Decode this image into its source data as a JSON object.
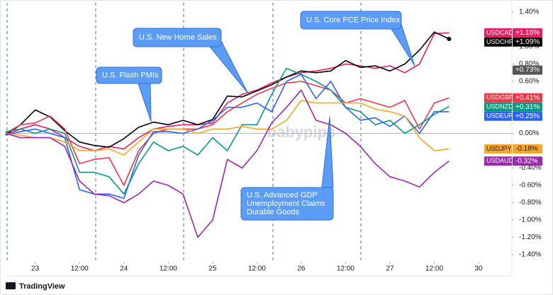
{
  "chart_data": {
    "type": "line",
    "x": [
      -8,
      -4,
      0,
      4,
      8,
      12,
      16,
      20,
      24,
      28,
      32,
      36,
      40,
      44,
      48,
      52,
      56,
      60,
      64,
      68,
      72,
      76,
      80,
      84,
      88,
      92,
      96,
      100,
      104,
      108,
      112
    ],
    "xlim": [
      -8,
      129
    ],
    "xticks": [
      {
        "value": 0,
        "label": "23"
      },
      {
        "value": 12,
        "label": "12:00"
      },
      {
        "value": 24,
        "label": "24"
      },
      {
        "value": 36,
        "label": "12:00"
      },
      {
        "value": 48,
        "label": "25"
      },
      {
        "value": 60,
        "label": "12:00"
      },
      {
        "value": 72,
        "label": "26"
      },
      {
        "value": 84,
        "label": "12:00"
      },
      {
        "value": 96,
        "label": "27"
      },
      {
        "value": 108,
        "label": "12:00"
      },
      {
        "value": 120,
        "label": "30"
      }
    ],
    "ylim": [
      -1.4,
      1.4
    ],
    "yticks": [
      {
        "value": 1.4,
        "label": "1.40%"
      },
      {
        "value": 1.0,
        "label": "1.00%"
      },
      {
        "value": 0.8,
        "label": "0.80%"
      },
      {
        "value": 0.6,
        "label": "0.60%"
      },
      {
        "value": 0,
        "label": "0.00%"
      },
      {
        "value": -0.4,
        "label": "-0.40%"
      },
      {
        "value": -0.6,
        "label": "-0.60%"
      },
      {
        "value": -0.8,
        "label": "-0.80%"
      },
      {
        "value": -1.0,
        "label": "-1.00%"
      },
      {
        "value": -1.2,
        "label": "-1.20%"
      },
      {
        "value": -1.4,
        "label": "-1.40%"
      }
    ],
    "grid": false,
    "series": [
      {
        "name": "USDCAD",
        "color": "#e91e63",
        "values": [
          -0.02,
          0.05,
          0.1,
          0.05,
          -0.05,
          -0.15,
          -0.2,
          -0.15,
          -0.18,
          -0.05,
          0.05,
          0.08,
          0.1,
          0.1,
          0.12,
          0.35,
          0.45,
          0.5,
          0.58,
          0.65,
          0.7,
          0.72,
          0.75,
          0.8,
          0.78,
          0.75,
          0.78,
          0.7,
          0.8,
          1.15,
          1.16
        ],
        "value_labels": [
          null,
          null,
          null,
          null,
          null,
          null,
          null,
          null,
          null,
          null,
          null,
          null,
          null,
          null,
          null,
          null,
          null,
          null,
          null,
          null,
          null,
          null,
          null,
          null,
          null,
          null,
          null,
          null,
          null,
          null,
          "+1.16%"
        ]
      },
      {
        "name": "USDCHF",
        "color": "#000000",
        "values": [
          -0.02,
          0.1,
          0.27,
          0.19,
          0.03,
          -0.1,
          -0.14,
          -0.16,
          -0.06,
          0.07,
          0.13,
          0.1,
          0.15,
          0.1,
          0.16,
          0.43,
          0.42,
          0.49,
          0.56,
          0.65,
          0.72,
          0.7,
          0.72,
          0.84,
          0.76,
          0.78,
          0.72,
          0.8,
          0.96,
          1.17,
          1.09
        ],
        "value_labels": [
          null,
          null,
          null,
          null,
          null,
          null,
          null,
          null,
          null,
          null,
          null,
          null,
          null,
          null,
          null,
          null,
          null,
          null,
          null,
          null,
          null,
          null,
          null,
          null,
          null,
          null,
          null,
          null,
          null,
          null,
          "+1.09%"
        ]
      },
      {
        "name": "USDGBP",
        "color": "#f23645",
        "values": [
          0,
          0.1,
          0.12,
          0.2,
          0.05,
          -0.35,
          -0.3,
          -0.28,
          -0.6,
          -0.2,
          0,
          0.05,
          0.05,
          0.05,
          0.1,
          0.25,
          0.35,
          0.45,
          0.52,
          0.58,
          0.6,
          0.55,
          0.5,
          0.35,
          0.4,
          0.35,
          0.3,
          0.38,
          0.05,
          0.35,
          0.41
        ],
        "value_labels": [
          null,
          null,
          null,
          null,
          null,
          null,
          null,
          null,
          null,
          null,
          null,
          null,
          null,
          null,
          null,
          null,
          null,
          null,
          null,
          null,
          null,
          null,
          null,
          null,
          null,
          null,
          null,
          null,
          null,
          null,
          "+0.41%"
        ]
      },
      {
        "name": "USDNZD",
        "color": "#089981",
        "values": [
          0.02,
          0.05,
          0,
          0.05,
          0,
          -0.45,
          -0.45,
          -0.5,
          -0.7,
          -0.35,
          -0.1,
          -0.2,
          -0.15,
          -0.25,
          -0.05,
          -0.2,
          0.1,
          0.1,
          0.45,
          0.75,
          0.68,
          0.6,
          0.5,
          0.3,
          0.25,
          0.1,
          0.15,
          0,
          0.1,
          0.22,
          0.31
        ],
        "value_labels": [
          null,
          null,
          null,
          null,
          null,
          null,
          null,
          null,
          null,
          null,
          null,
          null,
          null,
          null,
          null,
          null,
          null,
          null,
          null,
          null,
          null,
          null,
          null,
          null,
          null,
          null,
          null,
          null,
          null,
          null,
          "+0.31%"
        ]
      },
      {
        "name": "USDEUR",
        "color": "#2962ff",
        "values": [
          -0.02,
          0.02,
          0.05,
          0,
          -0.05,
          -0.65,
          -0.7,
          -0.7,
          -0.75,
          -0.25,
          0.02,
          0.02,
          0,
          0.05,
          0.15,
          0.3,
          0.3,
          0.35,
          0.25,
          0.6,
          0.68,
          0.4,
          0.6,
          0.3,
          0.15,
          0.18,
          0.08,
          0.2,
          0,
          0.25,
          0.25
        ],
        "value_labels": [
          null,
          null,
          null,
          null,
          null,
          null,
          null,
          null,
          null,
          null,
          null,
          null,
          null,
          null,
          null,
          null,
          null,
          null,
          null,
          null,
          null,
          null,
          null,
          null,
          null,
          null,
          null,
          null,
          null,
          null,
          "+0.25%"
        ]
      },
      {
        "name": "USDJPY",
        "color": "#f9a825",
        "values": [
          0,
          -0.02,
          -0.05,
          -0.05,
          -0.1,
          -0.2,
          -0.2,
          -0.18,
          -0.25,
          -0.1,
          0.05,
          0.05,
          0.05,
          0,
          0.05,
          0.05,
          0.08,
          0.05,
          0.05,
          0.15,
          0.38,
          0.35,
          0.35,
          0.35,
          0.35,
          0.28,
          0.25,
          0.2,
          -0.05,
          -0.2,
          -0.18
        ],
        "value_labels": [
          null,
          null,
          null,
          null,
          null,
          null,
          null,
          null,
          null,
          null,
          null,
          null,
          null,
          null,
          null,
          null,
          null,
          null,
          null,
          null,
          null,
          null,
          null,
          null,
          null,
          null,
          null,
          null,
          null,
          null,
          "-0.18%"
        ]
      },
      {
        "name": "USDAUD",
        "color": "#9c27b0",
        "values": [
          0,
          -0.05,
          -0.05,
          -0.05,
          -0.15,
          -0.55,
          -0.7,
          -0.72,
          -0.8,
          -0.7,
          -0.55,
          -0.6,
          -0.7,
          -1.2,
          -1.0,
          -0.3,
          -0.4,
          -0.2,
          0.12,
          0.3,
          0.5,
          0.15,
          0.1,
          0,
          -0.15,
          -0.35,
          -0.5,
          -0.55,
          -0.62,
          -0.45,
          -0.32
        ],
        "value_labels": [
          null,
          null,
          null,
          null,
          null,
          null,
          null,
          null,
          null,
          null,
          null,
          null,
          null,
          null,
          null,
          null,
          null,
          null,
          null,
          null,
          null,
          null,
          null,
          null,
          null,
          null,
          null,
          null,
          null,
          null,
          "-0.32%"
        ]
      }
    ],
    "marker": {
      "value": 0.73,
      "label": "+0.73%"
    },
    "annotations": [
      {
        "lines": [
          "U.S. Flash PMIs"
        ]
      },
      {
        "lines": [
          "U.S. New Home Sales"
        ]
      },
      {
        "lines": [
          "U.S. Core PCE Price Index"
        ]
      },
      {
        "lines": [
          "U.S. Advanced GDP",
          "Unemployment Claims",
          "Durable Goods"
        ]
      }
    ],
    "watermark": "babypips",
    "brand": "TradingView"
  }
}
